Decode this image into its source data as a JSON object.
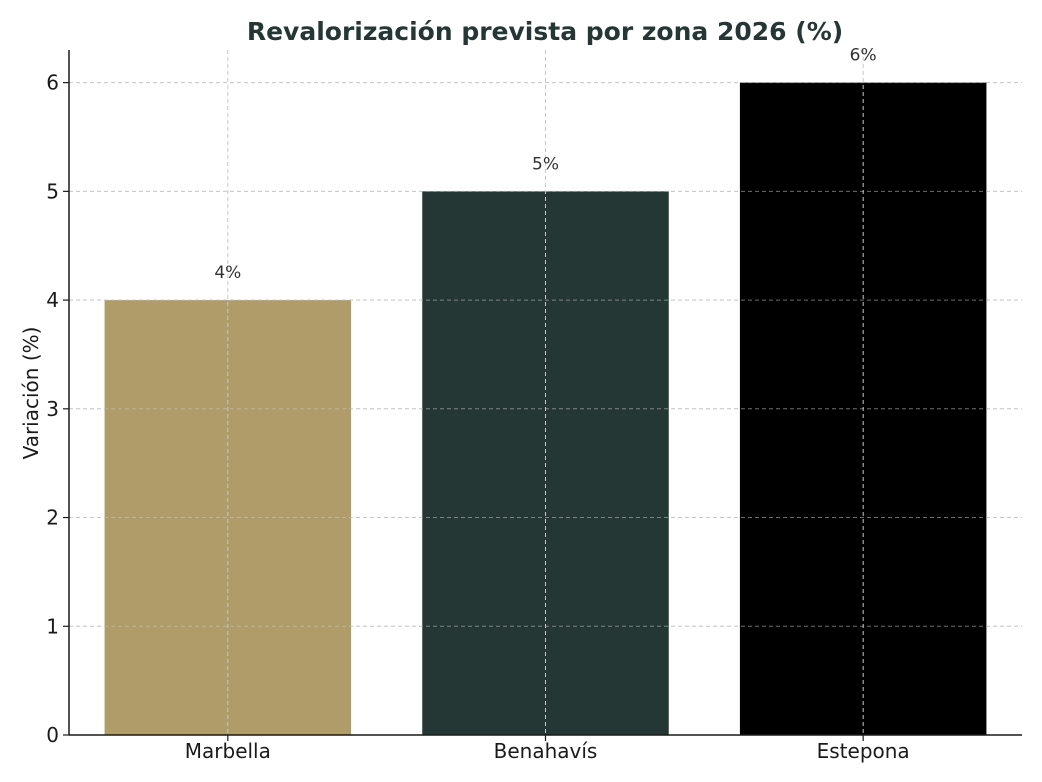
{
  "chart_data": {
    "type": "bar",
    "title": "Revalorización prevista por zona 2026 (%)",
    "xlabel": "",
    "ylabel": "Variación (%)",
    "categories": [
      "Marbella",
      "Benahavís",
      "Estepona"
    ],
    "values": [
      4,
      5,
      6
    ],
    "data_labels": [
      "4%",
      "5%",
      "6%"
    ],
    "bar_colors": [
      "#AF9C69",
      "#253735",
      "#000000"
    ],
    "title_color": "#253735",
    "ylim": [
      0,
      6.3
    ],
    "yticks": [
      0,
      1,
      2,
      3,
      4,
      5,
      6
    ],
    "ytick_labels": [
      "0",
      "1",
      "2",
      "3",
      "4",
      "5",
      "6"
    ],
    "grid": true
  }
}
